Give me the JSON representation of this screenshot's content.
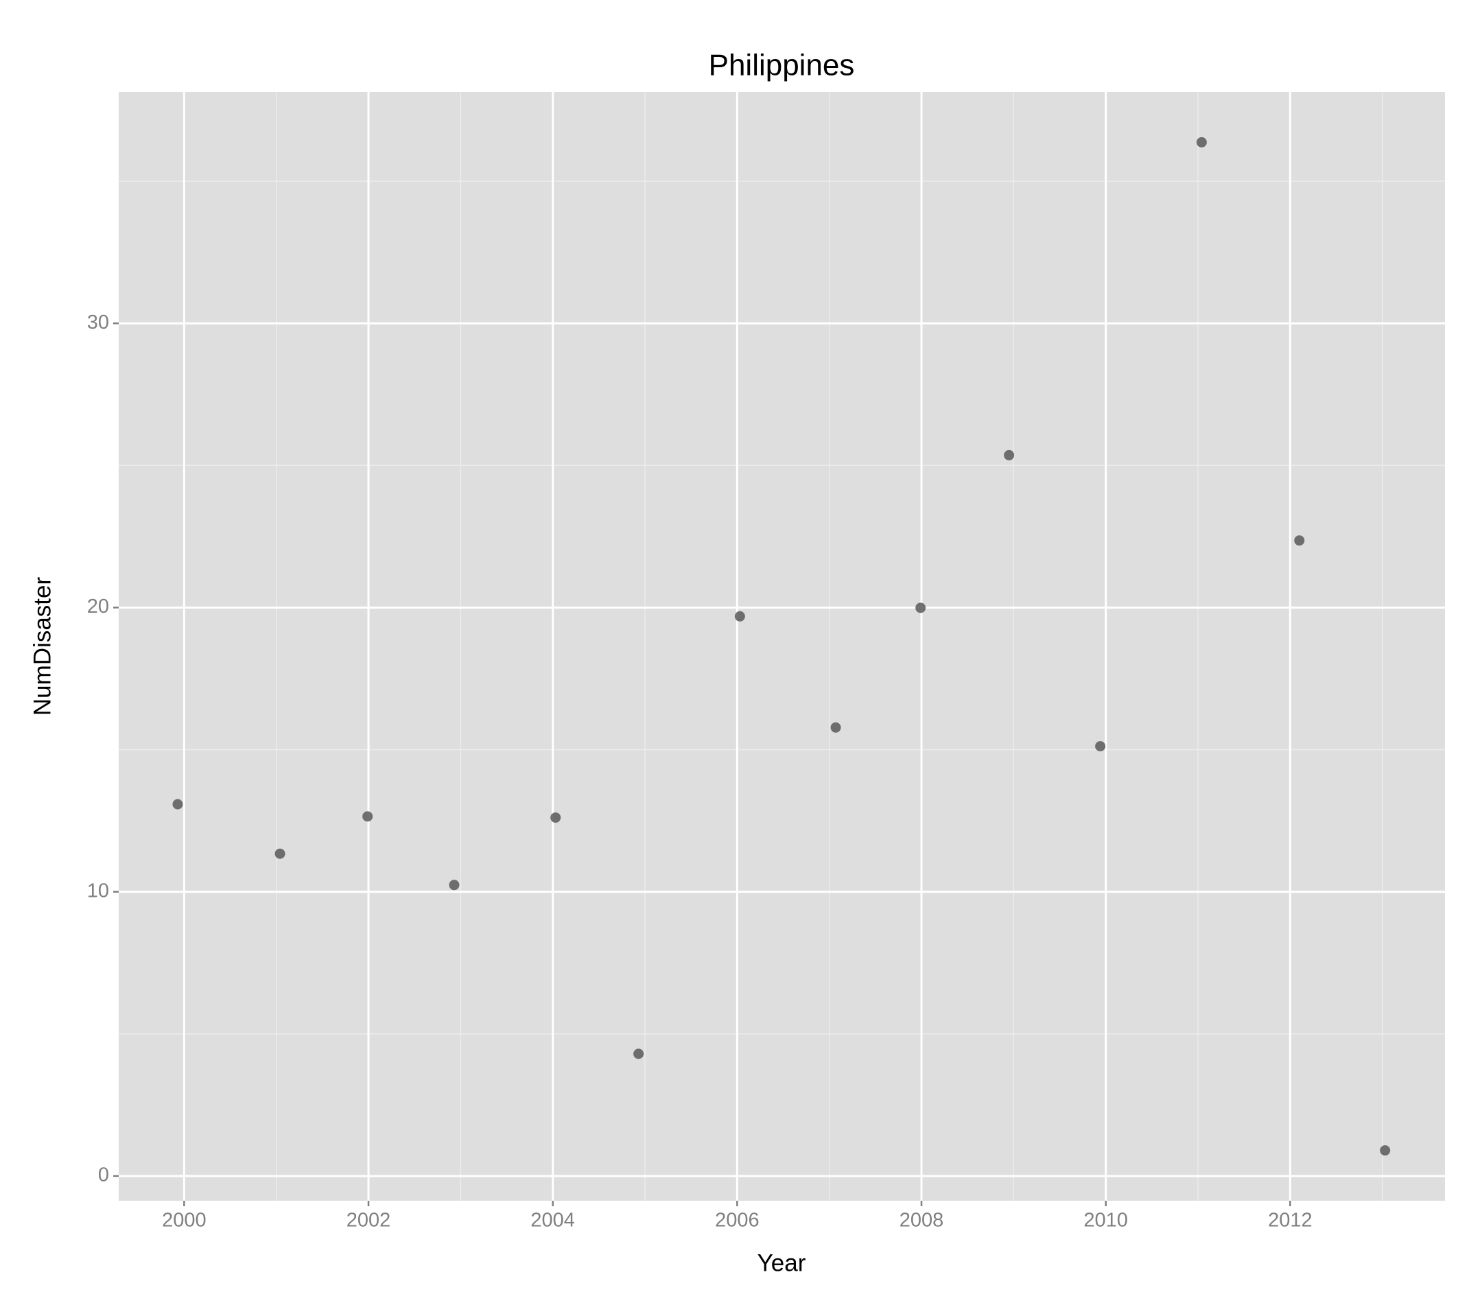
{
  "chart_data": {
    "type": "scatter",
    "title": "Philippines",
    "x_label": "Year",
    "y_label": "NumDisaster",
    "x": [
      1999.93,
      2001.04,
      2001.99,
      2002.93,
      2004.03,
      2004.93,
      2006.03,
      2007.07,
      2007.99,
      2008.95,
      2009.94,
      2011.04,
      2012.1,
      2013.03
    ],
    "values": [
      13.08,
      11.34,
      12.65,
      10.24,
      12.61,
      4.3,
      19.69,
      15.78,
      19.99,
      25.36,
      15.12,
      36.37,
      22.36,
      0.9
    ],
    "color": "#595959",
    "xlim": [
      1999.29,
      2013.68
    ],
    "ylim": [
      -0.87,
      38.14
    ],
    "xticks": [
      2000,
      2002,
      2004,
      2006,
      2008,
      2010,
      2012
    ],
    "yticks": [
      0,
      10,
      20,
      30
    ],
    "grid": true
  }
}
